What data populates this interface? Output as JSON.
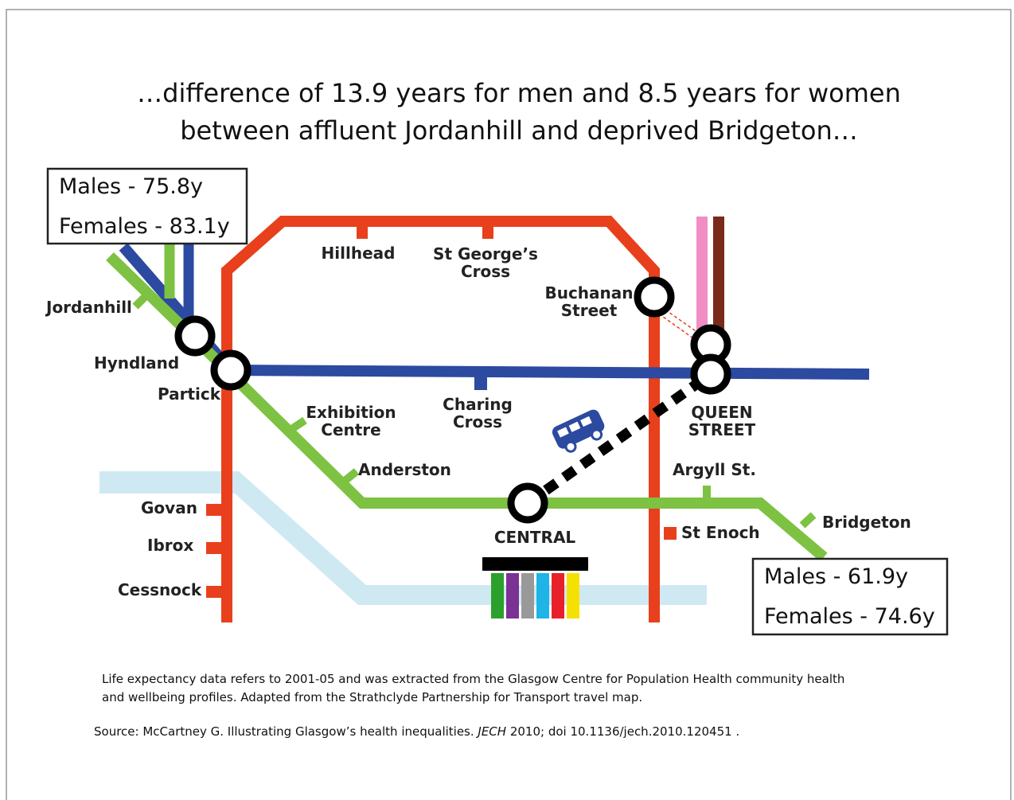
{
  "title": [
    "…difference of 13.9 years for men and 8.5 years for women",
    "between affluent Jordanhill and deprived Bridgeton…"
  ],
  "boxes": [
    {
      "lines": [
        "Males - 75.8y",
        "Females - 83.1y"
      ]
    },
    {
      "lines": [
        "Males - 61.9y",
        "Females - 74.6y"
      ]
    }
  ],
  "stations": [
    {
      "lines": [
        "Jordanhill"
      ]
    },
    {
      "lines": [
        "Hyndland"
      ]
    },
    {
      "lines": [
        "Partick"
      ]
    },
    {
      "lines": [
        "Hillhead"
      ]
    },
    {
      "lines": [
        "St George’s",
        "Cross"
      ]
    },
    {
      "lines": [
        "Buchanan",
        "Street"
      ]
    },
    {
      "lines": [
        "Exhibition",
        "Centre"
      ]
    },
    {
      "lines": [
        "Charing",
        "Cross"
      ]
    },
    {
      "lines": [
        "QUEEN",
        "STREET"
      ]
    },
    {
      "lines": [
        "Anderston"
      ]
    },
    {
      "lines": [
        "Argyll St."
      ]
    },
    {
      "lines": [
        "Govan"
      ]
    },
    {
      "lines": [
        "Ibrox"
      ]
    },
    {
      "lines": [
        "Cessnock"
      ]
    },
    {
      "lines": [
        "CENTRAL"
      ]
    },
    {
      "lines": [
        "St Enoch"
      ]
    },
    {
      "lines": [
        "Bridgeton"
      ]
    }
  ],
  "note": [
    "Life expectancy data refers to 2001-05 and was extracted from the Glasgow Centre for Population Health community health",
    "and wellbeing profiles. Adapted from the Strathclyde Partnership for Transport travel map."
  ],
  "source": [
    "Source: McCartney G. Illustrating Glasgow’s health inequalities. ",
    "JECH",
    " 2010; doi 10.1136/jech.2010.120451 ."
  ]
}
